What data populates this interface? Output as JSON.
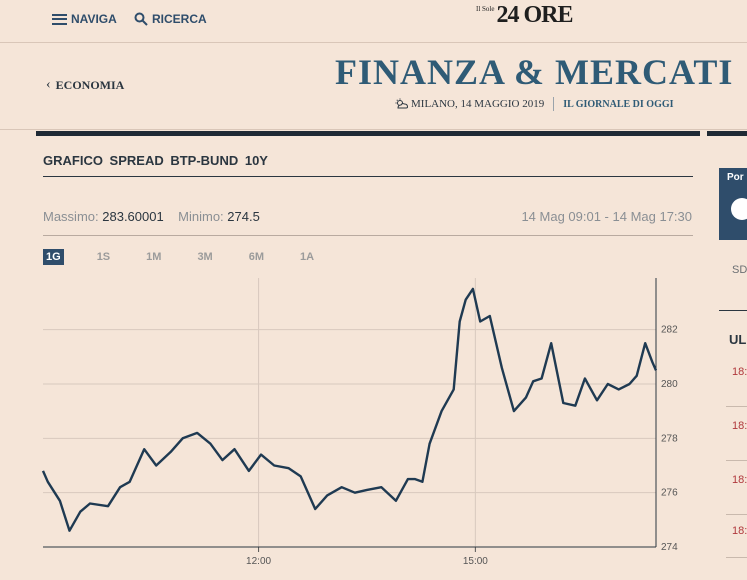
{
  "topbar": {
    "naviga": "NAVIGA",
    "ricerca": "RICERCA",
    "logo_small": "Il Sole",
    "logo_big": "24 ORE"
  },
  "header": {
    "back": "ECONOMIA",
    "title": "FINANZA & MERCATI",
    "date": "MILANO, 14 MAGGIO 2019",
    "link": "IL GIORNALE DI OGGI"
  },
  "chart_panel": {
    "title": "GRAFICO  SPREAD BTP-BUND 10Y",
    "max_label": "Massimo:",
    "max_value": "283.60001",
    "min_label": "Minimo:",
    "min_value": "274.5",
    "range": "14 Mag 09:01 - 14 Mag 17:30",
    "tabs": [
      "1G",
      "1S",
      "1M",
      "3M",
      "6M",
      "1A"
    ],
    "active_tab": "1G"
  },
  "chart_data": {
    "type": "line",
    "x_ticks": [
      "12:00",
      "15:00"
    ],
    "y_ticks": [
      "274",
      "276",
      "278",
      "280",
      "282"
    ],
    "ylim": [
      274,
      283.9
    ],
    "xlim": [
      "09:01",
      "17:30"
    ],
    "grid": true,
    "x": [
      "09:01",
      "09:05",
      "09:15",
      "09:23",
      "09:32",
      "09:40",
      "09:55",
      "10:05",
      "10:13",
      "10:25",
      "10:35",
      "10:47",
      "10:57",
      "11:09",
      "11:20",
      "11:30",
      "11:40",
      "11:52",
      "12:02",
      "12:13",
      "12:25",
      "12:35",
      "12:47",
      "12:57",
      "13:09",
      "13:20",
      "13:30",
      "13:42",
      "13:54",
      "14:04",
      "14:10",
      "14:16",
      "14:22",
      "14:32",
      "14:42",
      "14:47",
      "14:52",
      "14:58",
      "15:04",
      "15:12",
      "15:22",
      "15:32",
      "15:42",
      "15:48",
      "15:55",
      "16:03",
      "16:13",
      "16:23",
      "16:31",
      "16:41",
      "16:50",
      "16:59",
      "17:08",
      "17:14",
      "17:21",
      "17:27",
      "17:30"
    ],
    "series": [
      {
        "values": [
          276.8,
          276.4,
          275.7,
          274.6,
          275.3,
          275.6,
          275.5,
          276.2,
          276.4,
          277.6,
          277.0,
          277.5,
          278.0,
          278.2,
          277.8,
          277.2,
          277.6,
          276.8,
          277.4,
          277.0,
          276.9,
          276.6,
          275.4,
          275.9,
          276.2,
          276.0,
          276.1,
          276.2,
          275.7,
          276.5,
          276.5,
          276.4,
          277.8,
          279.0,
          279.8,
          282.3,
          283.1,
          283.5,
          282.3,
          282.5,
          280.6,
          279.0,
          279.5,
          280.1,
          280.2,
          281.5,
          279.3,
          279.2,
          280.2,
          279.4,
          280.0,
          279.8,
          280.0,
          280.3,
          281.5,
          280.8,
          280.5
        ]
      }
    ]
  },
  "sidebar": {
    "card_label": "Por",
    "sd": "SD",
    "ul": "UL",
    "times": [
      "18:",
      "18:",
      "18:",
      "18:"
    ]
  }
}
